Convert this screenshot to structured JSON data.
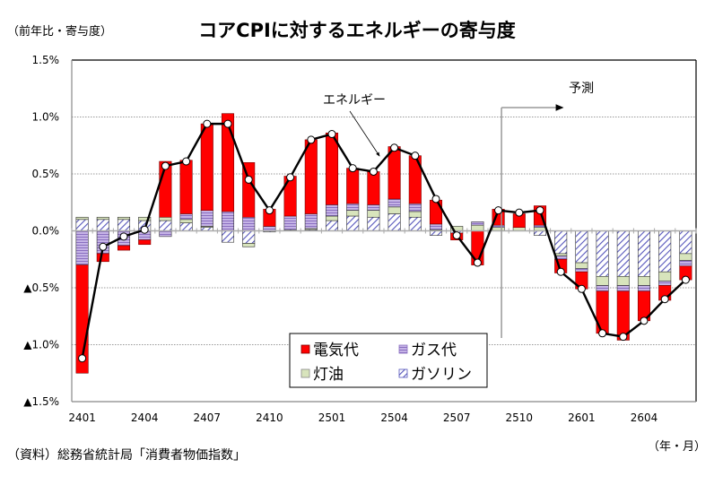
{
  "header": {
    "unit_label": "（前年比・寄与度）",
    "title": "コアCPIに対するエネルギーの寄与度"
  },
  "footer": {
    "source": "（資料）総務省統計局「消費者物価指数」",
    "x_unit": "（年・月）"
  },
  "chart_data": {
    "type": "bar",
    "stacked": true,
    "title": "コアCPIに対するエネルギーの寄与度",
    "ylabel": "（前年比・寄与度）",
    "xlabel": "（年・月）",
    "ylim": [
      -1.5,
      1.5
    ],
    "yticks": [
      1.5,
      1.0,
      0.5,
      0.0,
      -0.5,
      -1.0,
      -1.5
    ],
    "ytick_labels": [
      "1.5%",
      "1.0%",
      "0.5%",
      "0.0%",
      "▲0.5%",
      "▲1.0%",
      "▲1.5%"
    ],
    "grid": true,
    "categories": [
      "2401",
      "2402",
      "2403",
      "2404",
      "2405",
      "2406",
      "2407",
      "2408",
      "2409",
      "2410",
      "2411",
      "2412",
      "2501",
      "2502",
      "2503",
      "2504",
      "2505",
      "2506",
      "2507",
      "2508",
      "2509",
      "2510",
      "2511",
      "2512",
      "2601",
      "2602",
      "2603",
      "2604",
      "2605",
      "2606"
    ],
    "xtick_labels": [
      "2401",
      "2404",
      "2407",
      "2410",
      "2501",
      "2504",
      "2507",
      "2510",
      "2601",
      "2604"
    ],
    "series": [
      {
        "name": "ガソリン",
        "color": "#9999dd",
        "pattern": "diagonal-hatch",
        "values": [
          0.1,
          0.1,
          0.1,
          0.09,
          0.09,
          0.07,
          0.03,
          -0.1,
          -0.11,
          -0.01,
          0.01,
          0.01,
          0.09,
          0.13,
          0.12,
          0.15,
          0.12,
          -0.04,
          -0.02,
          0.0,
          0.0,
          0.0,
          -0.04,
          -0.2,
          -0.28,
          -0.4,
          -0.4,
          -0.4,
          -0.36,
          -0.2
        ]
      },
      {
        "name": "灯油",
        "color": "#d8e4bc",
        "pattern": "solid",
        "values": [
          0.02,
          0.02,
          0.02,
          0.03,
          0.03,
          0.03,
          0.01,
          0.0,
          -0.03,
          0.0,
          0.0,
          0.01,
          0.04,
          0.05,
          0.06,
          0.06,
          0.05,
          0.01,
          0.04,
          0.05,
          0.03,
          0.03,
          0.03,
          -0.02,
          -0.05,
          -0.08,
          -0.08,
          -0.08,
          -0.08,
          -0.06
        ]
      },
      {
        "name": "ガス代",
        "color": "#b9a3dc",
        "pattern": "horizontal-lines",
        "values": [
          -0.3,
          -0.2,
          -0.13,
          -0.08,
          -0.05,
          0.05,
          0.14,
          0.17,
          0.12,
          0.04,
          0.12,
          0.13,
          0.1,
          0.06,
          0.05,
          0.07,
          0.07,
          0.05,
          0.0,
          0.03,
          0.02,
          0.0,
          0.02,
          -0.03,
          -0.03,
          -0.05,
          -0.05,
          -0.05,
          -0.04,
          -0.05
        ]
      },
      {
        "name": "電気代",
        "color": "#ff0000",
        "pattern": "solid",
        "values": [
          -0.95,
          -0.07,
          -0.04,
          -0.04,
          0.49,
          0.47,
          0.76,
          0.86,
          0.48,
          0.15,
          0.35,
          0.65,
          0.63,
          0.31,
          0.29,
          0.46,
          0.42,
          0.21,
          -0.06,
          -0.3,
          0.14,
          0.12,
          0.17,
          -0.12,
          -0.15,
          -0.37,
          -0.43,
          -0.26,
          -0.13,
          -0.12
        ]
      }
    ],
    "line": {
      "name": "エネルギー",
      "color": "#000000",
      "values": [
        -1.12,
        -0.14,
        -0.05,
        0.01,
        0.57,
        0.61,
        0.94,
        0.94,
        0.45,
        0.18,
        0.47,
        0.8,
        0.85,
        0.55,
        0.52,
        0.73,
        0.66,
        0.28,
        -0.04,
        -0.28,
        0.18,
        0.16,
        0.18,
        -0.36,
        -0.51,
        -0.9,
        -0.93,
        -0.79,
        -0.6,
        -0.43
      ]
    },
    "legend": {
      "placement": "bottom-center",
      "entries": [
        "電気代",
        "ガス代",
        "灯油",
        "ガソリン"
      ]
    },
    "annotations": {
      "line_label": "エネルギー",
      "forecast_label": "予測",
      "forecast_start": "2510"
    }
  }
}
